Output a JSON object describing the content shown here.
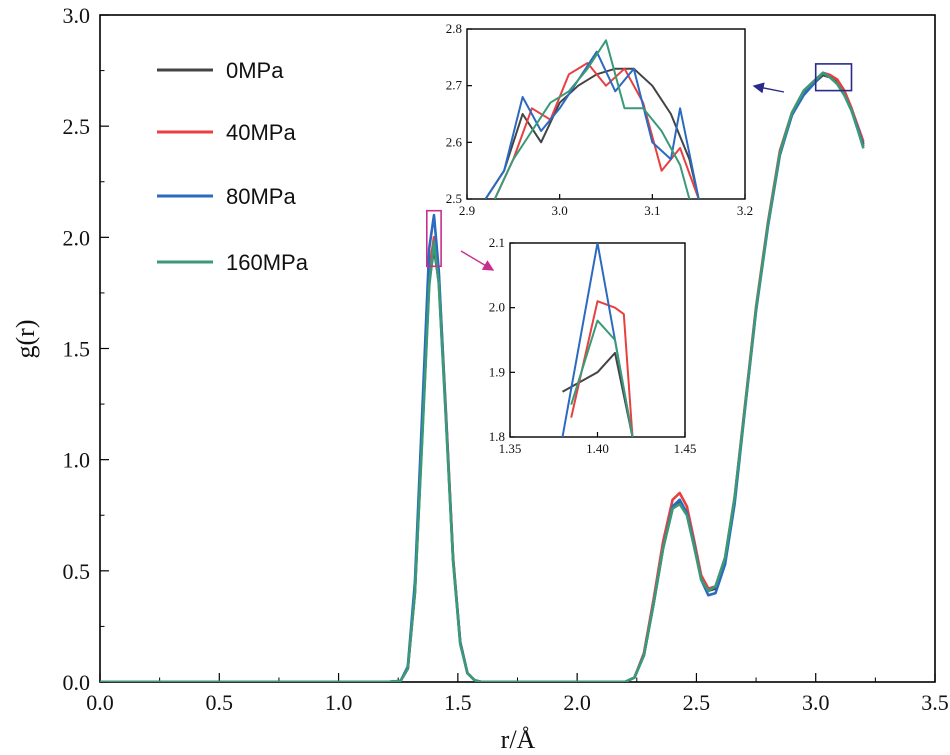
{
  "chart_data": [
    {
      "id": "main",
      "type": "line",
      "title": "",
      "xlabel": "r/Å",
      "ylabel": "g(r)",
      "xlim": [
        0,
        3.5
      ],
      "ylim": [
        0,
        3.0
      ],
      "xticks": [
        "0.0",
        "0.5",
        "1.0",
        "1.5",
        "2.0",
        "2.5",
        "3.0",
        "3.5"
      ],
      "yticks": [
        "0.0",
        "0.5",
        "1.0",
        "1.5",
        "2.0",
        "2.5",
        "3.0"
      ],
      "legend_position": "top-left",
      "series": [
        {
          "name": "0MPa",
          "color": "#444444",
          "x": [
            0,
            1.2,
            1.26,
            1.29,
            1.32,
            1.35,
            1.38,
            1.4,
            1.42,
            1.45,
            1.48,
            1.51,
            1.54,
            1.57,
            1.6,
            2.0,
            2.2,
            2.24,
            2.28,
            2.32,
            2.36,
            2.4,
            2.43,
            2.46,
            2.49,
            2.52,
            2.55,
            2.58,
            2.62,
            2.66,
            2.7,
            2.75,
            2.8,
            2.85,
            2.9,
            2.95,
            3.0,
            3.03,
            3.06,
            3.09,
            3.12,
            3.15,
            3.18,
            3.2
          ],
          "y": [
            0,
            0,
            0.005,
            0.06,
            0.4,
            1.1,
            1.8,
            1.95,
            1.8,
            1.2,
            0.55,
            0.18,
            0.04,
            0.008,
            0,
            0,
            0,
            0.02,
            0.12,
            0.35,
            0.6,
            0.78,
            0.81,
            0.76,
            0.62,
            0.47,
            0.41,
            0.42,
            0.55,
            0.82,
            1.2,
            1.68,
            2.06,
            2.38,
            2.55,
            2.65,
            2.7,
            2.73,
            2.72,
            2.7,
            2.66,
            2.58,
            2.48,
            2.42
          ]
        },
        {
          "name": "40MPa",
          "color": "#e8403f",
          "x": [
            0,
            1.2,
            1.26,
            1.29,
            1.32,
            1.35,
            1.38,
            1.4,
            1.42,
            1.45,
            1.48,
            1.51,
            1.54,
            1.57,
            1.6,
            2.0,
            2.2,
            2.24,
            2.28,
            2.32,
            2.36,
            2.4,
            2.43,
            2.46,
            2.49,
            2.52,
            2.55,
            2.58,
            2.62,
            2.66,
            2.7,
            2.75,
            2.8,
            2.85,
            2.9,
            2.95,
            3.0,
            3.03,
            3.06,
            3.09,
            3.12,
            3.15,
            3.18,
            3.2
          ],
          "y": [
            0,
            0,
            0.005,
            0.06,
            0.41,
            1.12,
            1.85,
            2.0,
            1.83,
            1.22,
            0.56,
            0.18,
            0.04,
            0.008,
            0,
            0,
            0,
            0.02,
            0.13,
            0.37,
            0.63,
            0.82,
            0.85,
            0.79,
            0.64,
            0.48,
            0.42,
            0.43,
            0.56,
            0.83,
            1.21,
            1.69,
            2.07,
            2.39,
            2.56,
            2.66,
            2.71,
            2.74,
            2.73,
            2.71,
            2.66,
            2.58,
            2.49,
            2.43
          ]
        },
        {
          "name": "80MPa",
          "color": "#2b6ac0",
          "x": [
            0,
            1.2,
            1.26,
            1.29,
            1.32,
            1.35,
            1.38,
            1.4,
            1.42,
            1.45,
            1.48,
            1.51,
            1.54,
            1.57,
            1.6,
            2.0,
            2.2,
            2.24,
            2.28,
            2.32,
            2.36,
            2.4,
            2.43,
            2.46,
            2.49,
            2.52,
            2.55,
            2.58,
            2.62,
            2.66,
            2.7,
            2.75,
            2.8,
            2.85,
            2.9,
            2.95,
            3.0,
            3.03,
            3.06,
            3.09,
            3.12,
            3.15,
            3.18,
            3.2
          ],
          "y": [
            0,
            0,
            0.005,
            0.07,
            0.45,
            1.2,
            1.95,
            2.1,
            1.85,
            1.2,
            0.55,
            0.18,
            0.04,
            0.008,
            0,
            0,
            0,
            0.02,
            0.12,
            0.35,
            0.6,
            0.79,
            0.82,
            0.76,
            0.62,
            0.46,
            0.39,
            0.4,
            0.53,
            0.8,
            1.19,
            1.67,
            2.05,
            2.37,
            2.55,
            2.64,
            2.7,
            2.74,
            2.72,
            2.69,
            2.64,
            2.57,
            2.48,
            2.41
          ]
        },
        {
          "name": "160MPa",
          "color": "#3a9a78",
          "x": [
            0,
            1.2,
            1.26,
            1.29,
            1.32,
            1.35,
            1.38,
            1.4,
            1.42,
            1.45,
            1.48,
            1.51,
            1.54,
            1.57,
            1.6,
            2.0,
            2.2,
            2.24,
            2.28,
            2.32,
            2.36,
            2.4,
            2.43,
            2.46,
            2.49,
            2.52,
            2.55,
            2.58,
            2.62,
            2.66,
            2.7,
            2.75,
            2.8,
            2.85,
            2.9,
            2.95,
            3.0,
            3.03,
            3.06,
            3.09,
            3.12,
            3.15,
            3.18,
            3.2
          ],
          "y": [
            0,
            0,
            0.005,
            0.06,
            0.4,
            1.08,
            1.78,
            1.98,
            1.79,
            1.18,
            0.54,
            0.17,
            0.04,
            0.008,
            0,
            0,
            0,
            0.02,
            0.12,
            0.35,
            0.6,
            0.78,
            0.8,
            0.75,
            0.61,
            0.46,
            0.41,
            0.43,
            0.56,
            0.83,
            1.2,
            1.68,
            2.06,
            2.38,
            2.56,
            2.66,
            2.71,
            2.74,
            2.72,
            2.69,
            2.64,
            2.57,
            2.47,
            2.4
          ]
        }
      ]
    },
    {
      "id": "inset-top",
      "type": "line",
      "title": "",
      "xlim": [
        2.9,
        3.2
      ],
      "ylim": [
        2.5,
        2.8
      ],
      "xticks": [
        "2.9",
        "3.0",
        "3.1",
        "3.2"
      ],
      "yticks": [
        "2.5",
        "2.6",
        "2.7",
        "2.8"
      ],
      "zoom_box_x": [
        3.0,
        3.15
      ],
      "zoom_box_y": [
        2.66,
        2.78
      ],
      "series": [
        {
          "name": "0MPa",
          "x": [
            2.92,
            2.94,
            2.96,
            2.98,
            3.0,
            3.02,
            3.04,
            3.06,
            3.08,
            3.1,
            3.12,
            3.14,
            3.15
          ],
          "y": [
            2.5,
            2.55,
            2.65,
            2.6,
            2.67,
            2.7,
            2.72,
            2.73,
            2.73,
            2.7,
            2.65,
            2.57,
            2.5
          ]
        },
        {
          "name": "40MPa",
          "x": [
            2.93,
            2.95,
            2.97,
            2.99,
            3.01,
            3.03,
            3.05,
            3.07,
            3.09,
            3.11,
            3.13,
            3.15
          ],
          "y": [
            2.5,
            2.57,
            2.66,
            2.64,
            2.72,
            2.74,
            2.7,
            2.73,
            2.67,
            2.55,
            2.59,
            2.5
          ]
        },
        {
          "name": "80MPa",
          "x": [
            2.92,
            2.94,
            2.96,
            2.98,
            3.0,
            3.02,
            3.04,
            3.06,
            3.08,
            3.1,
            3.12,
            3.13,
            3.15
          ],
          "y": [
            2.5,
            2.55,
            2.68,
            2.62,
            2.66,
            2.71,
            2.76,
            2.69,
            2.73,
            2.6,
            2.57,
            2.66,
            2.5
          ]
        },
        {
          "name": "160MPa",
          "x": [
            2.93,
            2.95,
            2.97,
            2.99,
            3.01,
            3.03,
            3.05,
            3.07,
            3.09,
            3.11,
            3.13,
            3.14
          ],
          "y": [
            2.5,
            2.57,
            2.62,
            2.67,
            2.69,
            2.73,
            2.78,
            2.66,
            2.66,
            2.62,
            2.56,
            2.5
          ]
        }
      ]
    },
    {
      "id": "inset-bottom",
      "type": "line",
      "title": "",
      "xlim": [
        1.35,
        1.45
      ],
      "ylim": [
        1.8,
        2.1
      ],
      "xticks": [
        "1.35",
        "1.40",
        "1.45"
      ],
      "yticks": [
        "1.8",
        "1.9",
        "2.0",
        "2.1"
      ],
      "zoom_box_x": [
        1.37,
        1.43
      ],
      "zoom_box_y": [
        1.87,
        2.12
      ],
      "series": [
        {
          "name": "0MPa",
          "x": [
            1.38,
            1.4,
            1.41,
            1.42
          ],
          "y": [
            1.87,
            1.9,
            1.93,
            1.8
          ]
        },
        {
          "name": "40MPa",
          "x": [
            1.385,
            1.4,
            1.41,
            1.415,
            1.42
          ],
          "y": [
            1.83,
            2.01,
            2.0,
            1.99,
            1.8
          ]
        },
        {
          "name": "80MPa",
          "x": [
            1.38,
            1.4,
            1.41,
            1.42
          ],
          "y": [
            1.8,
            2.1,
            1.95,
            1.8
          ]
        },
        {
          "name": "160MPa",
          "x": [
            1.385,
            1.4,
            1.41,
            1.42
          ],
          "y": [
            1.85,
            1.98,
            1.95,
            1.8
          ]
        }
      ]
    }
  ]
}
